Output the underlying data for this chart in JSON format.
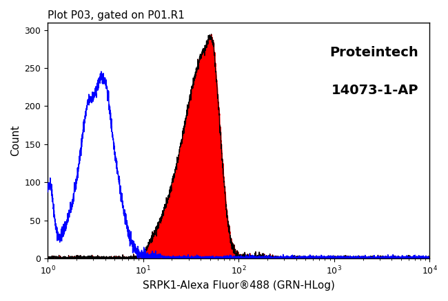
{
  "title": "Plot P03, gated on P01.R1",
  "xlabel": "SRPK1-Alexa Fluor®488 (GRN-HLog)",
  "ylabel": "Count",
  "annotation_line1": "Proteintech",
  "annotation_line2": "14073-1-AP",
  "ylim": [
    0,
    310
  ],
  "yticks": [
    0,
    50,
    100,
    150,
    200,
    250,
    300
  ],
  "bg_color": "#ffffff",
  "blue_color": "#0000ff",
  "red_color": "#ff0000",
  "red_edge_color": "#000000",
  "spine_color": "#000000"
}
